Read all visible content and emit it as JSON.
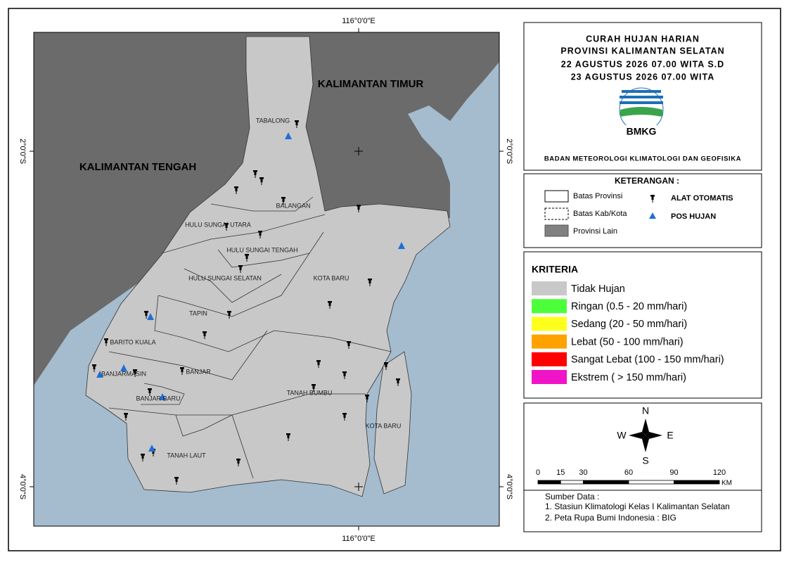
{
  "map": {
    "coords": {
      "top": "116°0'0\"E",
      "bottom": "116°0'0\"E",
      "left_top": "2°0'0\"S",
      "right_top": "2°0'0\"S",
      "left_bottom": "4°0'0\"S",
      "right_bottom": "4°0'0\"S"
    },
    "provinces": [
      "KALIMANTAN TENGAH",
      "KALIMANTAN TIMUR"
    ],
    "regions": [
      "TABALONG",
      "BALANGAN",
      "HULU SUNGAI UTARA",
      "HULU SUNGAI TENGAH",
      "HULU SUNGAI SELATAN",
      "TAPIN",
      "KOTA BARU",
      "BARITO KUALA",
      "BANJARMASIN",
      "BANJAR",
      "BANJAR BARU",
      "TANAH BUMBU",
      "KOTA BARU",
      "TANAH LAUT"
    ]
  },
  "title": {
    "lines": [
      "CURAH HUJAN HARIAN",
      "PROVINSI KALIMANTAN SELATAN",
      "22 AGUSTUS 2026 07.00 WITA S.D",
      "23 AGUSTUS 2026  07.00 WITA"
    ],
    "logo_text": "BMKG",
    "agency": "BADAN METEOROLOGI KLIMATOLOGI DAN GEOFISIKA"
  },
  "legend": {
    "title": "KETERANGAN :",
    "items": [
      "Batas Provinsi",
      "Batas Kab/Kota",
      "Provinsi Lain"
    ],
    "symbols": [
      "ALAT OTOMATIS",
      "POS HUJAN"
    ]
  },
  "criteria": {
    "title": "KRITERIA",
    "items": [
      {
        "label": "Tidak Hujan",
        "color": "#c8c8c8"
      },
      {
        "label": "Ringan (0.5 - 20 mm/hari)",
        "color": "#4cff3a"
      },
      {
        "label": "Sedang (20 - 50 mm/hari)",
        "color": "#ffff1e"
      },
      {
        "label": "Lebat (50 - 100 mm/hari)",
        "color": "#ffa200"
      },
      {
        "label": "Sangat Lebat (100 - 150 mm/hari)",
        "color": "#ff0000"
      },
      {
        "label": "Ekstrem ( > 150 mm/hari)",
        "color": "#f014c8"
      }
    ]
  },
  "compass": {
    "n": "N",
    "w": "W",
    "e": "E",
    "s": "S"
  },
  "scale": {
    "ticks": [
      0,
      15,
      30,
      60,
      90,
      120
    ],
    "unit": "KM"
  },
  "source": {
    "title": "Sumber Data :",
    "lines": [
      "1. Stasiun Klimatologi Kelas I Kalimantan Selatan",
      "2. Peta Rupa Bumi Indonesia : BIG"
    ]
  }
}
